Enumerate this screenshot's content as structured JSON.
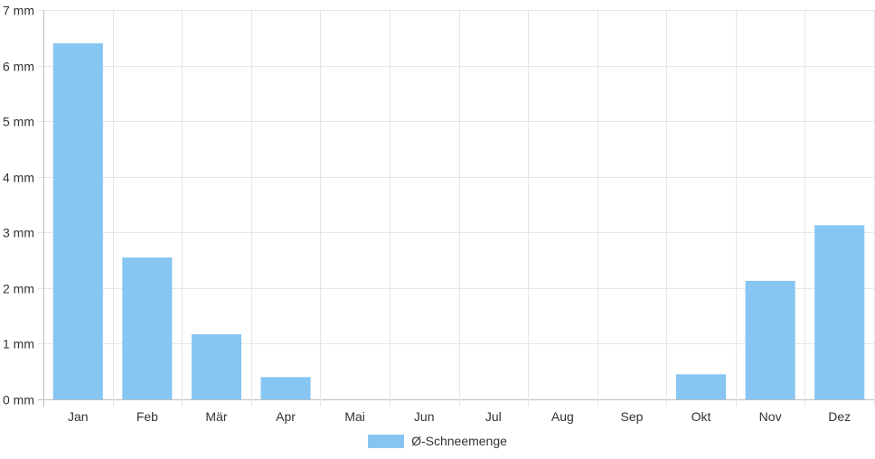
{
  "chart_data": {
    "type": "bar",
    "categories": [
      "Jan",
      "Feb",
      "Mär",
      "Apr",
      "Mai",
      "Jun",
      "Jul",
      "Aug",
      "Sep",
      "Okt",
      "Nov",
      "Dez"
    ],
    "series": [
      {
        "name": "Ø-Schneemenge",
        "values": [
          6.4,
          2.55,
          1.17,
          0.4,
          0,
          0,
          0,
          0,
          0,
          0.45,
          2.13,
          3.13
        ],
        "color": "#87c6f2"
      }
    ],
    "y_unit": "mm",
    "ylim": [
      0,
      7
    ],
    "yticks": [
      0,
      1,
      2,
      3,
      4,
      5,
      6,
      7
    ],
    "ytick_labels": [
      "0 mm",
      "1 mm",
      "2 mm",
      "3 mm",
      "4 mm",
      "5 mm",
      "6 mm",
      "7 mm"
    ],
    "grid": true,
    "legend_position": "bottom"
  }
}
